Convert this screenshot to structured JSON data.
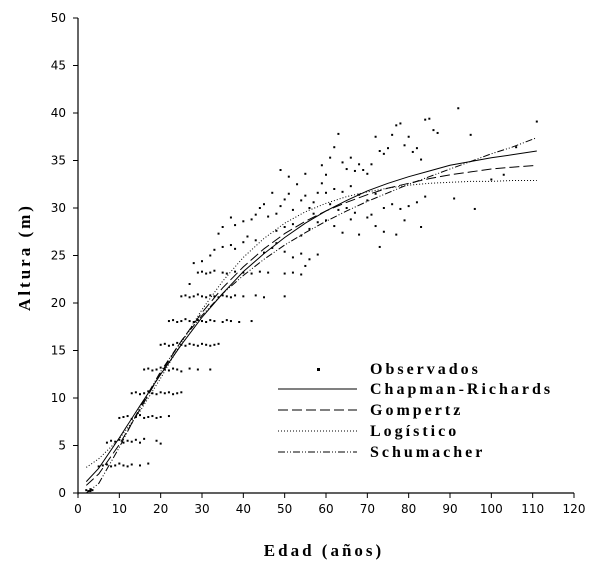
{
  "chart_data": {
    "type": "scatter",
    "title": "",
    "xlabel": "Edad (años)",
    "ylabel": "Altura (m)",
    "xlim": [
      0,
      120
    ],
    "ylim": [
      0,
      50
    ],
    "x_ticks": [
      "0",
      "10",
      "20",
      "30",
      "40",
      "50",
      "60",
      "70",
      "80",
      "90",
      "100",
      "110",
      "120"
    ],
    "y_ticks": [
      "0",
      "5",
      "10",
      "15",
      "20",
      "25",
      "30",
      "35",
      "40",
      "45",
      "50"
    ],
    "grid": false,
    "legend_position": "right-center",
    "legend": {
      "observed": "Observados",
      "chapman": "Chapman-Richards",
      "gompertz": "Gompertz",
      "logistic": "Logístico",
      "schumacher": "Schumacher"
    },
    "observed_points": [
      [
        2,
        0.3
      ],
      [
        2.5,
        0.2
      ],
      [
        3,
        0.4
      ],
      [
        3,
        0.2
      ],
      [
        3.5,
        0.3
      ],
      [
        5,
        2.8
      ],
      [
        6,
        2.9
      ],
      [
        7,
        3.0
      ],
      [
        8,
        2.8
      ],
      [
        9,
        2.9
      ],
      [
        10,
        3.1
      ],
      [
        11,
        2.9
      ],
      [
        12,
        2.8
      ],
      [
        13,
        3.0
      ],
      [
        15,
        2.9
      ],
      [
        17,
        3.1
      ],
      [
        7,
        5.3
      ],
      [
        8,
        5.5
      ],
      [
        9,
        5.4
      ],
      [
        10,
        5.6
      ],
      [
        11,
        5.3
      ],
      [
        12,
        5.5
      ],
      [
        13,
        5.4
      ],
      [
        14,
        5.6
      ],
      [
        15,
        5.3
      ],
      [
        16,
        5.7
      ],
      [
        19,
        5.5
      ],
      [
        20,
        5.2
      ],
      [
        10,
        7.9
      ],
      [
        11,
        8.0
      ],
      [
        12,
        8.1
      ],
      [
        13,
        7.8
      ],
      [
        14,
        8.0
      ],
      [
        15,
        8.2
      ],
      [
        16,
        7.9
      ],
      [
        17,
        8.0
      ],
      [
        18,
        8.1
      ],
      [
        19,
        7.9
      ],
      [
        20,
        8.0
      ],
      [
        22,
        8.1
      ],
      [
        13,
        10.5
      ],
      [
        14,
        10.6
      ],
      [
        15,
        10.4
      ],
      [
        16,
        10.5
      ],
      [
        17,
        10.7
      ],
      [
        18,
        10.5
      ],
      [
        19,
        10.4
      ],
      [
        20,
        10.6
      ],
      [
        21,
        10.5
      ],
      [
        22,
        10.6
      ],
      [
        23,
        10.4
      ],
      [
        24,
        10.5
      ],
      [
        25,
        10.6
      ],
      [
        16,
        13.0
      ],
      [
        17,
        13.1
      ],
      [
        18,
        12.9
      ],
      [
        19,
        13.0
      ],
      [
        20,
        13.2
      ],
      [
        21,
        13.0
      ],
      [
        22,
        12.9
      ],
      [
        23,
        13.1
      ],
      [
        24,
        13.0
      ],
      [
        25,
        12.8
      ],
      [
        27,
        13.1
      ],
      [
        29,
        13.0
      ],
      [
        32,
        13.0
      ],
      [
        20,
        15.6
      ],
      [
        21,
        15.7
      ],
      [
        22,
        15.5
      ],
      [
        23,
        15.6
      ],
      [
        24,
        15.8
      ],
      [
        25,
        15.6
      ],
      [
        26,
        15.5
      ],
      [
        27,
        15.7
      ],
      [
        28,
        15.6
      ],
      [
        29,
        15.5
      ],
      [
        30,
        15.7
      ],
      [
        31,
        15.6
      ],
      [
        32,
        15.5
      ],
      [
        33,
        15.6
      ],
      [
        34,
        15.7
      ],
      [
        22,
        18.1
      ],
      [
        23,
        18.2
      ],
      [
        24,
        18.0
      ],
      [
        25,
        18.1
      ],
      [
        26,
        18.3
      ],
      [
        27,
        18.1
      ],
      [
        28,
        18.0
      ],
      [
        29,
        18.2
      ],
      [
        30,
        18.1
      ],
      [
        31,
        18.0
      ],
      [
        32,
        18.2
      ],
      [
        33,
        18.1
      ],
      [
        35,
        18.0
      ],
      [
        36,
        18.2
      ],
      [
        37,
        18.1
      ],
      [
        39,
        18.0
      ],
      [
        42,
        18.1
      ],
      [
        25,
        20.7
      ],
      [
        26,
        20.8
      ],
      [
        27,
        20.6
      ],
      [
        28,
        20.7
      ],
      [
        29,
        20.9
      ],
      [
        30,
        20.7
      ],
      [
        31,
        20.6
      ],
      [
        32,
        20.8
      ],
      [
        33,
        20.7
      ],
      [
        34,
        20.6
      ],
      [
        35,
        20.8
      ],
      [
        36,
        20.7
      ],
      [
        37,
        20.6
      ],
      [
        38,
        20.8
      ],
      [
        40,
        20.7
      ],
      [
        43,
        20.8
      ],
      [
        45,
        20.6
      ],
      [
        50,
        20.7
      ],
      [
        27,
        22.0
      ],
      [
        29,
        23.2
      ],
      [
        30,
        23.3
      ],
      [
        31,
        23.1
      ],
      [
        32,
        23.2
      ],
      [
        33,
        23.4
      ],
      [
        35,
        23.2
      ],
      [
        36,
        23.1
      ],
      [
        38,
        23.3
      ],
      [
        40,
        23.2
      ],
      [
        42,
        23.1
      ],
      [
        44,
        23.3
      ],
      [
        46,
        23.2
      ],
      [
        50,
        23.1
      ],
      [
        52,
        23.2
      ],
      [
        54,
        23.0
      ],
      [
        28,
        24.2
      ],
      [
        30,
        24.4
      ],
      [
        32,
        25.0
      ],
      [
        33,
        25.6
      ],
      [
        35,
        25.9
      ],
      [
        37,
        26.1
      ],
      [
        38,
        25.7
      ],
      [
        40,
        26.4
      ],
      [
        41,
        27.0
      ],
      [
        43,
        26.6
      ],
      [
        45,
        25.3
      ],
      [
        47,
        25.8
      ],
      [
        48,
        26.3
      ],
      [
        50,
        25.4
      ],
      [
        52,
        24.8
      ],
      [
        54,
        25.2
      ],
      [
        56,
        24.6
      ],
      [
        58,
        25.1
      ],
      [
        55,
        23.9
      ],
      [
        34,
        27.3
      ],
      [
        35,
        28.0
      ],
      [
        37,
        29.0
      ],
      [
        38,
        28.2
      ],
      [
        40,
        28.6
      ],
      [
        42,
        28.8
      ],
      [
        43,
        29.3
      ],
      [
        44,
        30.0
      ],
      [
        45,
        30.4
      ],
      [
        46,
        29.1
      ],
      [
        47,
        31.6
      ],
      [
        48,
        29.4
      ],
      [
        49,
        30.2
      ],
      [
        50,
        30.9
      ],
      [
        51,
        31.5
      ],
      [
        52,
        29.8
      ],
      [
        53,
        32.5
      ],
      [
        54,
        30.8
      ],
      [
        55,
        31.3
      ],
      [
        56,
        30.0
      ],
      [
        57,
        29.4
      ],
      [
        58,
        31.6
      ],
      [
        59,
        32.6
      ],
      [
        60,
        33.5
      ],
      [
        48,
        27.6
      ],
      [
        50,
        28.0
      ],
      [
        52,
        28.3
      ],
      [
        54,
        27.1
      ],
      [
        56,
        27.8
      ],
      [
        58,
        28.5
      ],
      [
        60,
        28.7
      ],
      [
        62,
        28.1
      ],
      [
        64,
        27.4
      ],
      [
        66,
        28.8
      ],
      [
        68,
        27.2
      ],
      [
        70,
        29.0
      ],
      [
        72,
        28.1
      ],
      [
        74,
        27.5
      ],
      [
        49,
        34.0
      ],
      [
        51,
        33.3
      ],
      [
        55,
        33.6
      ],
      [
        59,
        34.5
      ],
      [
        61,
        35.3
      ],
      [
        62,
        36.4
      ],
      [
        63,
        37.8
      ],
      [
        64,
        34.8
      ],
      [
        65,
        34.1
      ],
      [
        66,
        35.3
      ],
      [
        67,
        33.9
      ],
      [
        68,
        34.6
      ],
      [
        69,
        34.0
      ],
      [
        70,
        33.6
      ],
      [
        60,
        31.6
      ],
      [
        62,
        32.0
      ],
      [
        64,
        31.7
      ],
      [
        66,
        32.3
      ],
      [
        68,
        31.4
      ],
      [
        70,
        30.8
      ],
      [
        72,
        31.5
      ],
      [
        74,
        30.0
      ],
      [
        76,
        30.4
      ],
      [
        78,
        29.9
      ],
      [
        80,
        30.2
      ],
      [
        82,
        30.6
      ],
      [
        84,
        31.2
      ],
      [
        57,
        30.6
      ],
      [
        61,
        30.4
      ],
      [
        63,
        29.8
      ],
      [
        65,
        30.0
      ],
      [
        67,
        29.5
      ],
      [
        71,
        29.3
      ],
      [
        73,
        25.9
      ],
      [
        77,
        27.2
      ],
      [
        79,
        28.7
      ],
      [
        83,
        28.0
      ],
      [
        71,
        34.6
      ],
      [
        72,
        37.5
      ],
      [
        73,
        36.0
      ],
      [
        74,
        35.7
      ],
      [
        75,
        36.3
      ],
      [
        76,
        37.7
      ],
      [
        77,
        38.7
      ],
      [
        78,
        38.9
      ],
      [
        79,
        36.6
      ],
      [
        80,
        37.5
      ],
      [
        81,
        35.9
      ],
      [
        82,
        36.3
      ],
      [
        83,
        35.1
      ],
      [
        84,
        39.3
      ],
      [
        85,
        39.4
      ],
      [
        86,
        38.2
      ],
      [
        87,
        37.9
      ],
      [
        92,
        40.5
      ],
      [
        95,
        37.7
      ],
      [
        91,
        31.0
      ],
      [
        96,
        29.9
      ],
      [
        100,
        33.0
      ],
      [
        111,
        39.1
      ],
      [
        106,
        36.4
      ],
      [
        103,
        33.5
      ]
    ],
    "series": [
      {
        "name": "Chapman-Richards",
        "x": [
          2,
          5,
          10,
          15,
          20,
          25,
          30,
          35,
          40,
          45,
          50,
          55,
          60,
          65,
          70,
          75,
          80,
          85,
          90,
          95,
          100,
          105,
          111
        ],
        "y": [
          1.2,
          2.6,
          5.8,
          9.2,
          12.5,
          15.6,
          18.5,
          21.0,
          23.3,
          25.2,
          26.9,
          28.4,
          29.7,
          30.8,
          31.8,
          32.6,
          33.3,
          33.9,
          34.5,
          34.9,
          35.3,
          35.6,
          36.0
        ]
      },
      {
        "name": "Gompertz",
        "x": [
          2,
          5,
          10,
          15,
          20,
          25,
          30,
          35,
          40,
          45,
          50,
          55,
          60,
          65,
          70,
          75,
          80,
          85,
          90,
          95,
          100,
          105,
          111
        ],
        "y": [
          0.8,
          2.0,
          5.1,
          8.8,
          12.6,
          16.0,
          19.0,
          21.6,
          23.8,
          25.7,
          27.3,
          28.6,
          29.7,
          30.6,
          31.4,
          32.1,
          32.6,
          33.1,
          33.5,
          33.8,
          34.1,
          34.3,
          34.5
        ]
      },
      {
        "name": "Logístico",
        "x": [
          2,
          5,
          10,
          15,
          20,
          25,
          30,
          35,
          40,
          45,
          50,
          55,
          60,
          65,
          70,
          75,
          80,
          85,
          90,
          95,
          100,
          105,
          111
        ],
        "y": [
          2.7,
          3.6,
          5.7,
          8.6,
          12.1,
          15.8,
          19.3,
          22.3,
          24.8,
          26.8,
          28.4,
          29.6,
          30.5,
          31.2,
          31.7,
          32.1,
          32.4,
          32.6,
          32.7,
          32.8,
          32.8,
          32.9,
          32.9
        ]
      },
      {
        "name": "Schumacher",
        "x": [
          2,
          5,
          10,
          15,
          20,
          25,
          30,
          35,
          40,
          45,
          50,
          55,
          60,
          65,
          70,
          75,
          80,
          85,
          90,
          95,
          100,
          105,
          111
        ],
        "y": [
          0.0,
          1.0,
          4.8,
          9.0,
          12.8,
          16.0,
          18.7,
          21.0,
          22.9,
          24.6,
          26.1,
          27.4,
          28.6,
          29.7,
          30.7,
          31.6,
          32.5,
          33.3,
          34.1,
          34.9,
          35.7,
          36.4,
          37.4
        ]
      }
    ]
  }
}
